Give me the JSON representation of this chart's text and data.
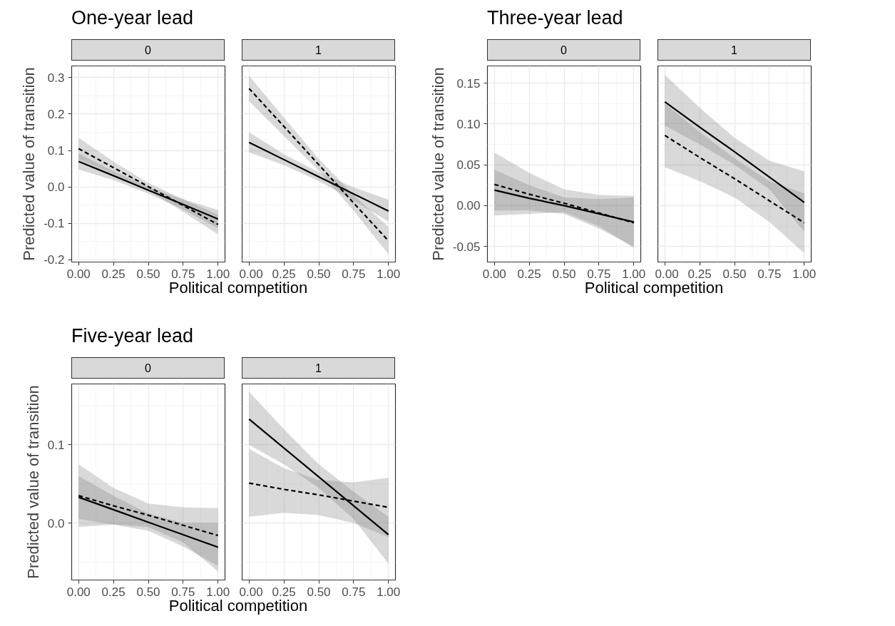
{
  "chart_data": [
    {
      "type": "line",
      "title": "One-year lead",
      "subtitle": "0",
      "xlabel": "Political competition",
      "ylabel": "Predicted value of transition",
      "grid": true,
      "xlim": [
        -0.05,
        1.05
      ],
      "xticks": [
        {
          "value": 0,
          "label": "0.00"
        },
        {
          "value": 0.25,
          "label": "0.25"
        },
        {
          "value": 0.5,
          "label": "0.50"
        },
        {
          "value": 0.75,
          "label": "0.75"
        },
        {
          "value": 1,
          "label": "1.00"
        }
      ],
      "ylim": [
        -0.206,
        0.332
      ],
      "yticks": [
        {
          "value": -0.2,
          "label": "-0.2"
        },
        {
          "value": -0.1,
          "label": "-0.1"
        },
        {
          "value": 0,
          "label": "0.0"
        },
        {
          "value": 0.1,
          "label": "0.1"
        },
        {
          "value": 0.2,
          "label": "0.2"
        },
        {
          "value": 0.3,
          "label": "0.3"
        }
      ],
      "x": [
        0,
        0.25,
        0.5,
        0.75,
        1
      ],
      "series": [
        {
          "color": "#000000",
          "line_style": "solid",
          "values": [
            0.07,
            0.031,
            -0.009,
            -0.048,
            -0.088
          ],
          "lower": [
            0.048,
            0.019,
            -0.018,
            -0.062,
            -0.113
          ],
          "upper": [
            0.092,
            0.043,
            0.0,
            -0.034,
            -0.063
          ]
        },
        {
          "color": "#000000",
          "line_style": "dashed",
          "values": [
            0.105,
            0.053,
            0.001,
            -0.051,
            -0.103
          ],
          "lower": [
            0.075,
            0.036,
            -0.009,
            -0.068,
            -0.13
          ],
          "upper": [
            0.135,
            0.07,
            0.011,
            -0.034,
            -0.076
          ]
        }
      ]
    },
    {
      "type": "line",
      "subtitle": "1",
      "grid": true,
      "tick_labels": "x",
      "xlim": [
        -0.05,
        1.05
      ],
      "xticks": [
        {
          "value": 0,
          "label": "0.00"
        },
        {
          "value": 0.25,
          "label": "0.25"
        },
        {
          "value": 0.5,
          "label": "0.50"
        },
        {
          "value": 0.75,
          "label": "0.75"
        },
        {
          "value": 1,
          "label": "1.00"
        }
      ],
      "ylim": [
        -0.206,
        0.332
      ],
      "yticks": [
        -0.2,
        -0.1,
        0,
        0.1,
        0.2,
        0.3
      ],
      "x": [
        0,
        0.25,
        0.5,
        0.75,
        1
      ],
      "series": [
        {
          "color": "#000000",
          "line_style": "solid",
          "values": [
            0.122,
            0.075,
            0.028,
            -0.019,
            -0.066
          ],
          "lower": [
            0.095,
            0.06,
            0.016,
            -0.037,
            -0.095
          ],
          "upper": [
            0.15,
            0.09,
            0.04,
            -0.001,
            -0.035
          ]
        },
        {
          "color": "#000000",
          "line_style": "dashed",
          "values": [
            0.27,
            0.166,
            0.061,
            -0.044,
            -0.148
          ],
          "lower": [
            0.235,
            0.14,
            0.045,
            -0.065,
            -0.185
          ],
          "upper": [
            0.305,
            0.19,
            0.077,
            -0.022,
            -0.11
          ]
        }
      ]
    },
    {
      "type": "line",
      "title": "Three-year lead",
      "subtitle": "0",
      "xlabel": "Political competition",
      "ylabel": "Predicted value of transition",
      "grid": true,
      "xlim": [
        -0.05,
        1.05
      ],
      "xticks": [
        {
          "value": 0,
          "label": "0.00"
        },
        {
          "value": 0.25,
          "label": "0.25"
        },
        {
          "value": 0.5,
          "label": "0.50"
        },
        {
          "value": 0.75,
          "label": "0.75"
        },
        {
          "value": 1,
          "label": "1.00"
        }
      ],
      "ylim": [
        -0.069,
        0.171
      ],
      "yticks": [
        {
          "value": -0.05,
          "label": "-0.05"
        },
        {
          "value": 0,
          "label": "0.00"
        },
        {
          "value": 0.05,
          "label": "0.05"
        },
        {
          "value": 0.1,
          "label": "0.10"
        },
        {
          "value": 0.15,
          "label": "0.15"
        }
      ],
      "x": [
        0,
        0.25,
        0.5,
        0.75,
        1
      ],
      "series": [
        {
          "color": "#000000",
          "line_style": "solid",
          "values": [
            0.019,
            0.009,
            0.0,
            -0.01,
            -0.02
          ],
          "lower": [
            -0.006,
            -0.006,
            -0.01,
            -0.028,
            -0.05
          ],
          "upper": [
            0.044,
            0.025,
            0.01,
            0.008,
            0.01
          ]
        },
        {
          "color": "#000000",
          "line_style": "dashed",
          "values": [
            0.026,
            0.014,
            0.003,
            -0.009,
            -0.021
          ],
          "lower": [
            -0.012,
            -0.01,
            -0.008,
            -0.025,
            -0.052
          ],
          "upper": [
            0.065,
            0.04,
            0.02,
            0.013,
            0.012
          ]
        }
      ]
    },
    {
      "type": "line",
      "subtitle": "1",
      "grid": true,
      "tick_labels": "x",
      "xlim": [
        -0.05,
        1.05
      ],
      "xticks": [
        {
          "value": 0,
          "label": "0.00"
        },
        {
          "value": 0.25,
          "label": "0.25"
        },
        {
          "value": 0.5,
          "label": "0.50"
        },
        {
          "value": 0.75,
          "label": "0.75"
        },
        {
          "value": 1,
          "label": "1.00"
        }
      ],
      "ylim": [
        -0.069,
        0.171
      ],
      "yticks": [
        -0.05,
        0,
        0.05,
        0.1,
        0.15
      ],
      "x": [
        0,
        0.25,
        0.5,
        0.75,
        1
      ],
      "series": [
        {
          "color": "#000000",
          "line_style": "solid",
          "values": [
            0.127,
            0.096,
            0.066,
            0.035,
            0.004
          ],
          "lower": [
            0.098,
            0.075,
            0.05,
            0.02,
            -0.032
          ],
          "upper": [
            0.16,
            0.12,
            0.083,
            0.055,
            0.042
          ]
        },
        {
          "color": "#000000",
          "line_style": "dashed",
          "values": [
            0.086,
            0.059,
            0.033,
            0.006,
            -0.021
          ],
          "lower": [
            0.047,
            0.03,
            0.01,
            -0.02,
            -0.058
          ],
          "upper": [
            0.125,
            0.09,
            0.058,
            0.03,
            0.015
          ]
        }
      ]
    },
    {
      "type": "line",
      "title": "Five-year lead",
      "subtitle": "0",
      "xlabel": "Political competition",
      "ylabel": "Predicted value of transition",
      "grid": true,
      "xlim": [
        -0.05,
        1.05
      ],
      "xticks": [
        {
          "value": 0,
          "label": "0.00"
        },
        {
          "value": 0.25,
          "label": "0.25"
        },
        {
          "value": 0.5,
          "label": "0.50"
        },
        {
          "value": 0.75,
          "label": "0.75"
        },
        {
          "value": 1,
          "label": "1.00"
        }
      ],
      "ylim": [
        -0.073,
        0.178
      ],
      "yticks": [
        {
          "value": 0,
          "label": "0.0"
        },
        {
          "value": 0.1,
          "label": "0.1"
        }
      ],
      "x": [
        0,
        0.25,
        0.5,
        0.75,
        1
      ],
      "series": [
        {
          "color": "#000000",
          "line_style": "solid",
          "values": [
            0.033,
            0.017,
            0.001,
            -0.015,
            -0.031
          ],
          "lower": [
            0.005,
            -0.002,
            -0.01,
            -0.03,
            -0.055
          ],
          "upper": [
            0.06,
            0.035,
            0.012,
            0.0,
            0.0
          ]
        },
        {
          "color": "#000000",
          "line_style": "dashed",
          "values": [
            0.035,
            0.022,
            0.01,
            -0.003,
            -0.016
          ],
          "lower": [
            -0.005,
            -0.002,
            -0.005,
            -0.025,
            -0.062
          ],
          "upper": [
            0.075,
            0.045,
            0.025,
            0.02,
            0.019
          ]
        }
      ]
    },
    {
      "type": "line",
      "subtitle": "1",
      "grid": true,
      "tick_labels": "x",
      "xlim": [
        -0.05,
        1.05
      ],
      "xticks": [
        {
          "value": 0,
          "label": "0.00"
        },
        {
          "value": 0.25,
          "label": "0.25"
        },
        {
          "value": 0.5,
          "label": "0.50"
        },
        {
          "value": 0.75,
          "label": "0.75"
        },
        {
          "value": 1,
          "label": "1.00"
        }
      ],
      "ylim": [
        -0.073,
        0.178
      ],
      "yticks": [
        0,
        0.1
      ],
      "x": [
        0,
        0.25,
        0.5,
        0.75,
        1
      ],
      "series": [
        {
          "color": "#000000",
          "line_style": "solid",
          "values": [
            0.133,
            0.096,
            0.059,
            0.022,
            -0.015
          ],
          "lower": [
            0.1,
            0.075,
            0.045,
            0.005,
            -0.052
          ],
          "upper": [
            0.168,
            0.12,
            0.075,
            0.04,
            0.008
          ]
        },
        {
          "color": "#000000",
          "line_style": "dashed",
          "values": [
            0.051,
            0.043,
            0.036,
            0.028,
            0.02
          ],
          "lower": [
            0.008,
            0.013,
            0.01,
            0.0,
            -0.018
          ],
          "upper": [
            0.095,
            0.07,
            0.055,
            0.052,
            0.058
          ]
        }
      ]
    }
  ]
}
